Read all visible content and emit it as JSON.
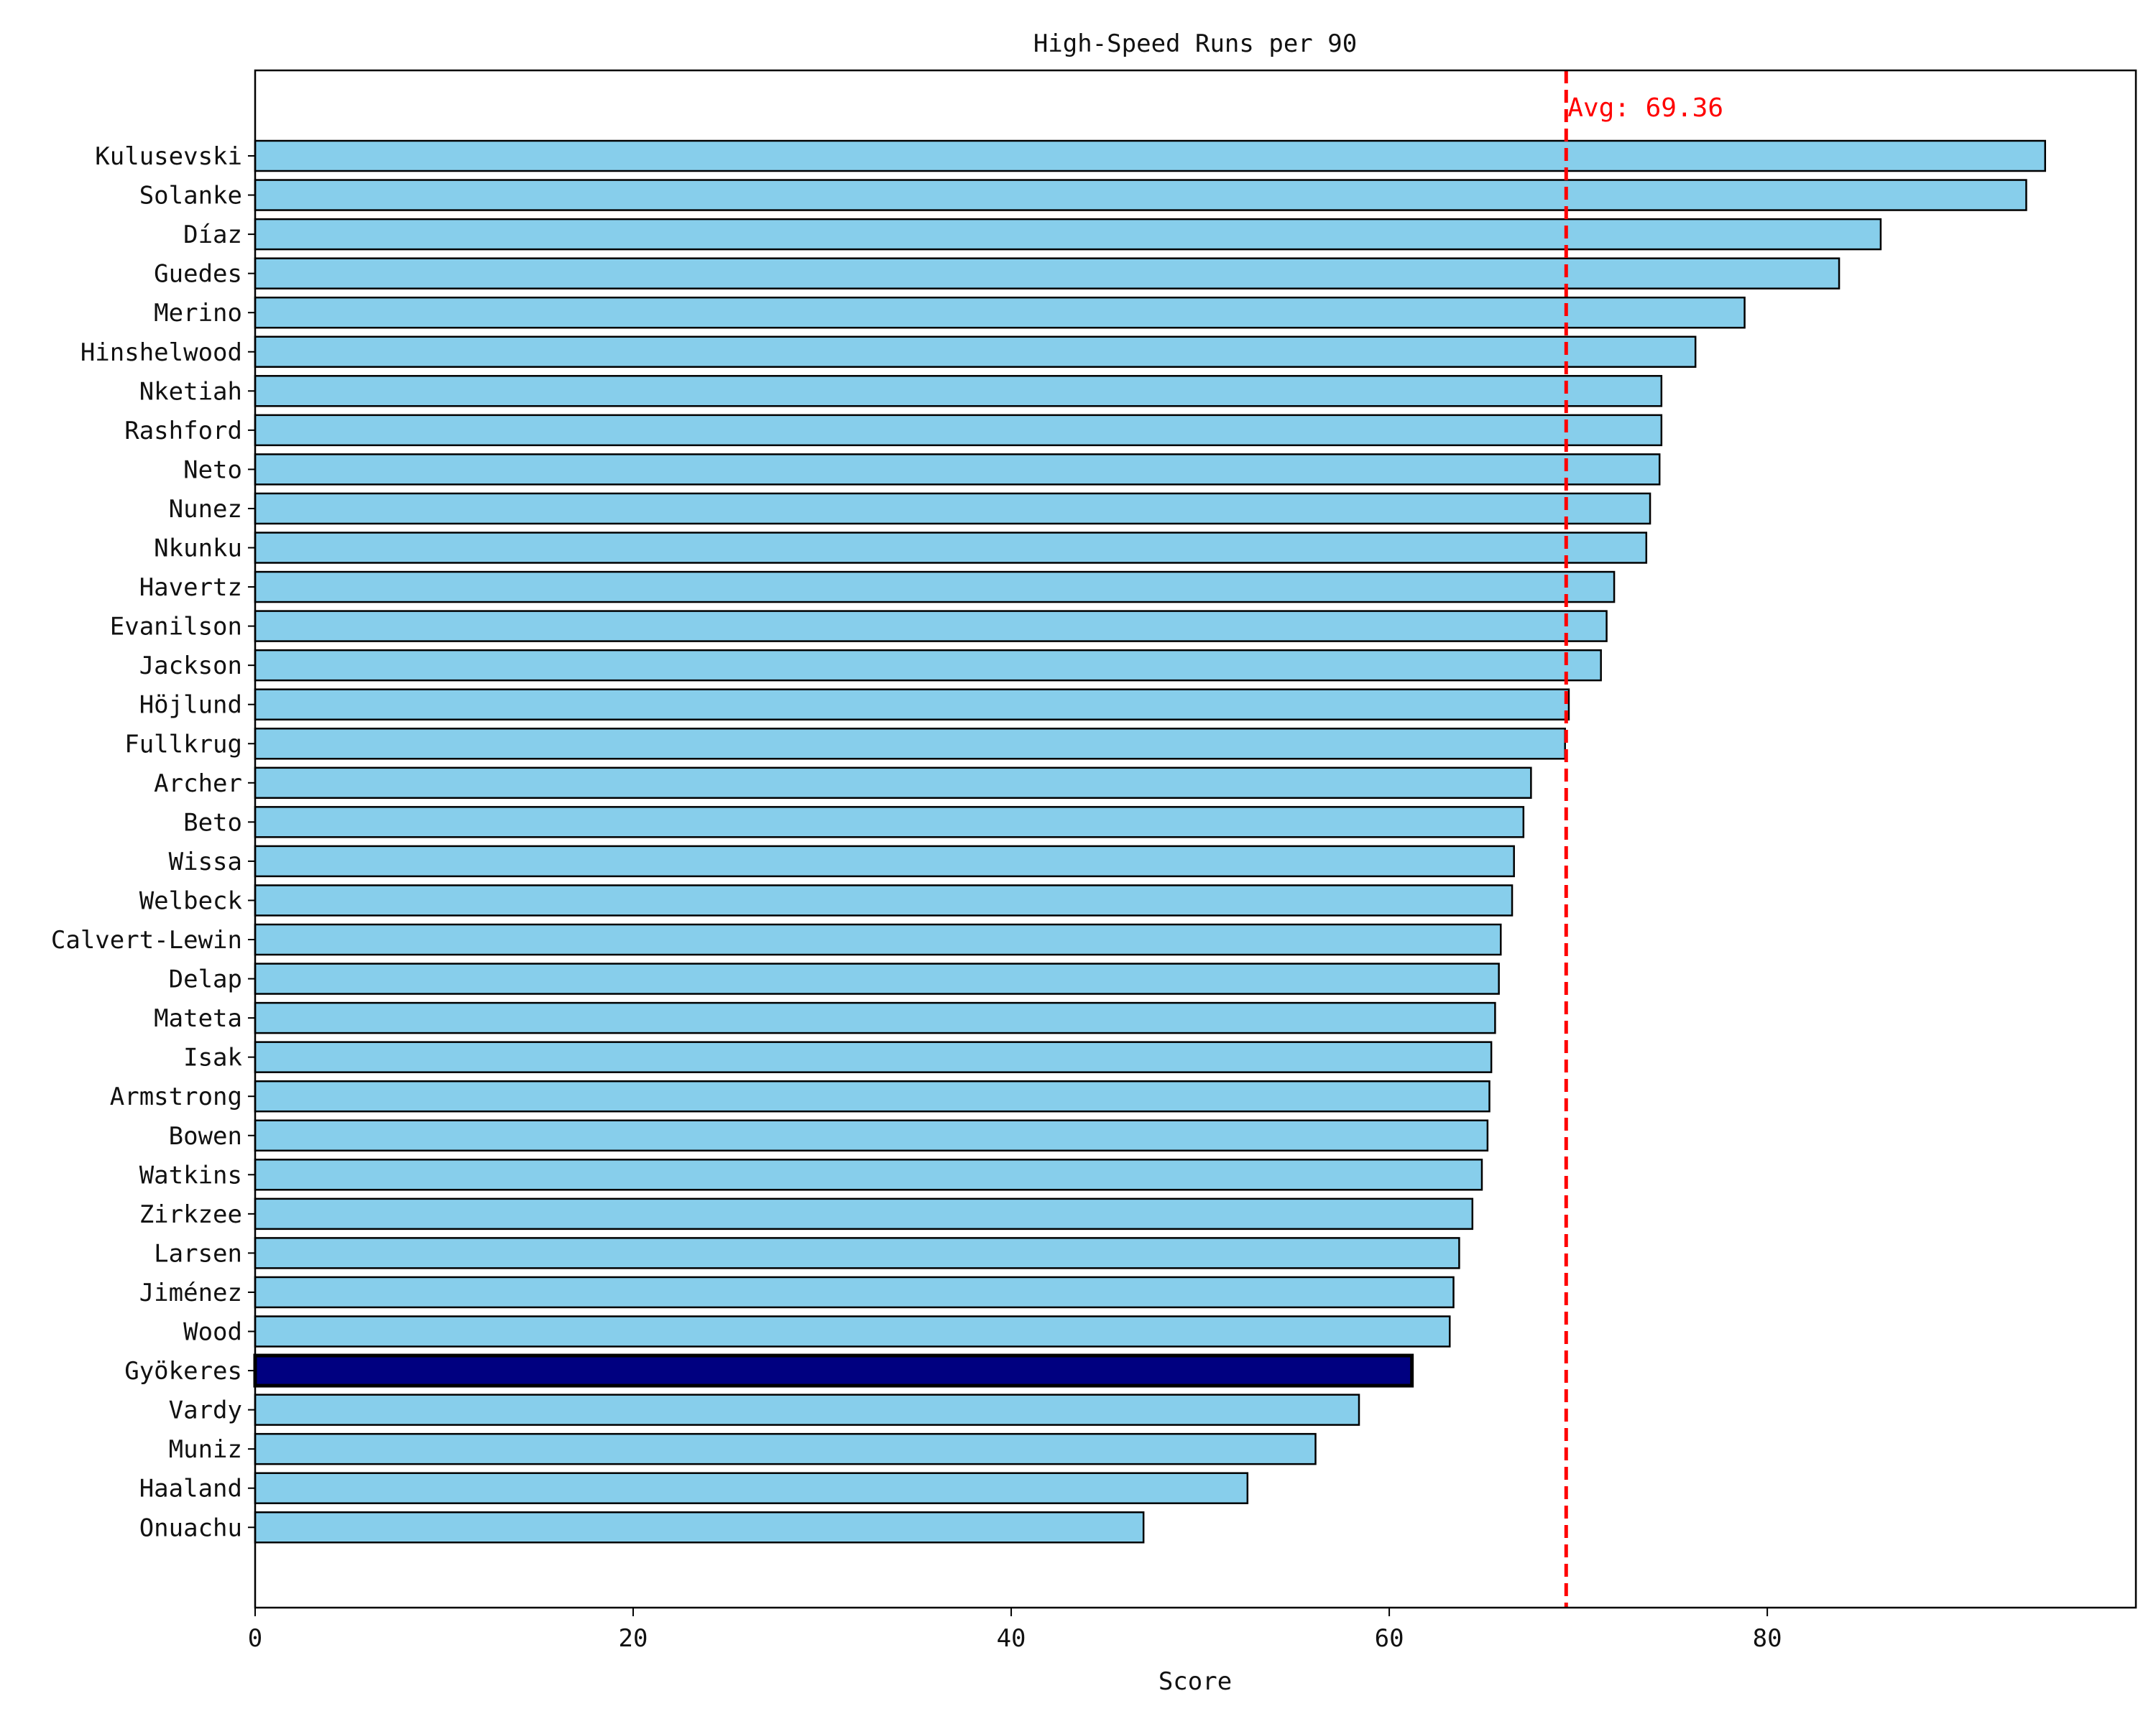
{
  "chart_data": {
    "type": "bar",
    "orientation": "horizontal",
    "title": "High-Speed Runs per 90",
    "xlabel": "Score",
    "ylabel": "",
    "xlim": [
      0,
      99.5
    ],
    "xticks": [
      0,
      20,
      40,
      60,
      80
    ],
    "grid": false,
    "categories": [
      "Kulusevski",
      "Solanke",
      "Díaz",
      "Guedes",
      "Merino",
      "Hinshelwood",
      "Nketiah",
      "Rashford",
      "Neto",
      "Nunez",
      "Nkunku",
      "Havertz",
      "Evanilson",
      "Jackson",
      "Höjlund",
      "Fullkrug",
      "Archer",
      "Beto",
      "Wissa",
      "Welbeck",
      "Calvert-Lewin",
      "Delap",
      "Mateta",
      "Isak",
      "Armstrong",
      "Bowen",
      "Watkins",
      "Zirkzee",
      "Larsen",
      "Jiménez",
      "Wood",
      "Gyökeres",
      "Vardy",
      "Muniz",
      "Haaland",
      "Onuachu"
    ],
    "values": [
      94.7,
      93.7,
      86.0,
      83.8,
      78.8,
      76.2,
      74.4,
      74.4,
      74.3,
      73.8,
      73.6,
      71.9,
      71.5,
      71.2,
      69.5,
      69.3,
      67.5,
      67.1,
      66.6,
      66.5,
      65.9,
      65.8,
      65.6,
      65.4,
      65.3,
      65.2,
      64.9,
      64.4,
      63.7,
      63.4,
      63.2,
      61.2,
      58.4,
      56.1,
      52.5,
      47.0
    ],
    "highlight": "Gyökeres",
    "bar_color": "#87ceeb",
    "highlight_color": "#000080",
    "edge_color": "#000000",
    "average": {
      "value": 69.36,
      "label": "Avg: 69.36",
      "color": "#ff0000",
      "style": "dashed"
    }
  }
}
